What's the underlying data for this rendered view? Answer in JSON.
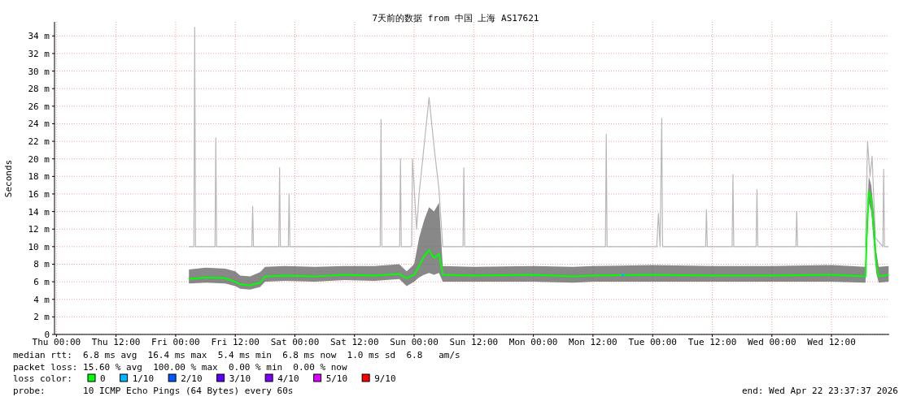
{
  "chart_data": {
    "type": "line",
    "title": "7天前的数据 from 中国 上海 AS17621",
    "ylabel": "Seconds",
    "xlim": [
      "2026-04-15T23:37",
      "2026-04-22T23:37"
    ],
    "xticks": [
      {
        "value": "2026-04-16T00:00",
        "label": "Thu 00:00"
      },
      {
        "value": "2026-04-16T12:00",
        "label": "Thu 12:00"
      },
      {
        "value": "2026-04-17T00:00",
        "label": "Fri 00:00"
      },
      {
        "value": "2026-04-17T12:00",
        "label": "Fri 12:00"
      },
      {
        "value": "2026-04-18T00:00",
        "label": "Sat 00:00"
      },
      {
        "value": "2026-04-18T12:00",
        "label": "Sat 12:00"
      },
      {
        "value": "2026-04-19T00:00",
        "label": "Sun 00:00"
      },
      {
        "value": "2026-04-19T12:00",
        "label": "Sun 12:00"
      },
      {
        "value": "2026-04-20T00:00",
        "label": "Mon 00:00"
      },
      {
        "value": "2026-04-20T12:00",
        "label": "Mon 12:00"
      },
      {
        "value": "2026-04-21T00:00",
        "label": "Tue 00:00"
      },
      {
        "value": "2026-04-21T12:00",
        "label": "Tue 12:00"
      },
      {
        "value": "2026-04-22T00:00",
        "label": "Wed 00:00"
      },
      {
        "value": "2026-04-22T12:00",
        "label": "Wed 12:00"
      }
    ],
    "ylim": [
      0,
      35.6
    ],
    "yticks": [
      0,
      {
        "value": 2,
        "label": "2 m"
      },
      {
        "value": 4,
        "label": "4 m"
      },
      {
        "value": 6,
        "label": "6 m"
      },
      {
        "value": 8,
        "label": "8 m"
      },
      {
        "value": 10,
        "label": "10 m"
      },
      {
        "value": 12,
        "label": "12 m"
      },
      {
        "value": 14,
        "label": "14 m"
      },
      {
        "value": 16,
        "label": "16 m"
      },
      {
        "value": 18,
        "label": "18 m"
      },
      {
        "value": 20,
        "label": "20 m"
      },
      {
        "value": 22,
        "label": "22 m"
      },
      {
        "value": 24,
        "label": "24 m"
      },
      {
        "value": 26,
        "label": "26 m"
      },
      {
        "value": 28,
        "label": "28 m"
      },
      {
        "value": 30,
        "label": "30 m"
      },
      {
        "value": 32,
        "label": "32 m"
      },
      {
        "value": 34,
        "label": "34 m"
      }
    ],
    "grid": true,
    "legend": "bottom",
    "legend_title": "loss color:",
    "annotations": [
      "median rtt:  6.8 ms avg  16.4 ms max  5.4 ms min  6.8 ms now  1.0 ms sd  6.8   am/s",
      "packet loss: 15.60 % avg  100.00 % max  0.00 % min  0.00 % now",
      "probe:       10 ICMP Echo Pings (64 Bytes) every 60s",
      "end: Wed Apr 22 23:37:37 2026"
    ],
    "series": [
      {
        "color": "#b8b8b8",
        "x": [
          "2026-04-17T02:40",
          "2026-04-17T03:40",
          "2026-04-17T03:50",
          "2026-04-17T04:00",
          "2026-04-17T07:55",
          "2026-04-17T08:05",
          "2026-04-17T08:15",
          "2026-04-17T15:20",
          "2026-04-17T15:30",
          "2026-04-17T15:40",
          "2026-04-17T20:45",
          "2026-04-17T20:55",
          "2026-04-17T21:05",
          "2026-04-17T22:40",
          "2026-04-17T22:50",
          "2026-04-17T23:00",
          "2026-04-18T17:10",
          "2026-04-18T17:20",
          "2026-04-18T17:30",
          "2026-04-18T21:05",
          "2026-04-18T21:15",
          "2026-04-18T21:25",
          "2026-04-18T23:30",
          "2026-04-18T23:40",
          "2026-04-19T00:30",
          "2026-04-19T01:00",
          "2026-04-19T03:00",
          "2026-04-19T04:05",
          "2026-04-19T05:00",
          "2026-04-19T05:45",
          "2026-04-19T09:50",
          "2026-04-19T10:00",
          "2026-04-19T10:10",
          "2026-04-20T14:30",
          "2026-04-20T14:40",
          "2026-04-20T14:50",
          "2026-04-21T00:50",
          "2026-04-21T01:10",
          "2026-04-21T01:30",
          "2026-04-21T01:50",
          "2026-04-21T02:00",
          "2026-04-21T10:40",
          "2026-04-21T10:50",
          "2026-04-21T11:00",
          "2026-04-21T16:00",
          "2026-04-21T16:10",
          "2026-04-21T16:20",
          "2026-04-21T20:50",
          "2026-04-21T21:00",
          "2026-04-21T21:10",
          "2026-04-22T04:50",
          "2026-04-22T05:00",
          "2026-04-22T05:10",
          "2026-04-22T18:50",
          "2026-04-22T19:15",
          "2026-04-22T19:45",
          "2026-04-22T20:10",
          "2026-04-22T20:50",
          "2026-04-22T22:20",
          "2026-04-22T22:30",
          "2026-04-22T22:40",
          "2026-04-22T23:30"
        ],
        "values": [
          10,
          10,
          35,
          10,
          10,
          22.4,
          10,
          10,
          14.6,
          10,
          10,
          19,
          10,
          10,
          16,
          10,
          10,
          24.5,
          10,
          10,
          20,
          10,
          10,
          20,
          12,
          16,
          27,
          21,
          16.5,
          10,
          10,
          19,
          10,
          10,
          22.8,
          10,
          10,
          13.8,
          10,
          24.6,
          10,
          10,
          14.2,
          10,
          10,
          18.2,
          10,
          10,
          16.5,
          10,
          10,
          14,
          10,
          10,
          22,
          18,
          20.3,
          11,
          10,
          18.8,
          10,
          10
        ]
      },
      {
        "name": "0",
        "color": "#00ff00",
        "x": [
          "2026-04-17T02:40",
          "2026-04-17T06:00",
          "2026-04-17T10:00",
          "2026-04-17T12:00",
          "2026-04-17T13:00",
          "2026-04-17T15:00",
          "2026-04-17T17:00",
          "2026-04-17T18:00",
          "2026-04-17T22:00",
          "2026-04-18T04:00",
          "2026-04-18T10:00",
          "2026-04-18T16:00",
          "2026-04-18T21:00",
          "2026-04-18T22:30",
          "2026-04-19T00:00",
          "2026-04-19T01:00",
          "2026-04-19T02:00",
          "2026-04-19T03:00",
          "2026-04-19T04:00",
          "2026-04-19T05:00",
          "2026-04-19T05:45",
          "2026-04-19T12:00",
          "2026-04-20T00:00",
          "2026-04-20T08:00",
          "2026-04-20T12:00",
          "2026-04-21T00:00",
          "2026-04-21T12:00",
          "2026-04-22T00:00",
          "2026-04-22T12:00",
          "2026-04-22T18:50",
          "2026-04-22T19:05",
          "2026-04-22T19:30",
          "2026-04-22T20:00",
          "2026-04-22T20:30",
          "2026-04-22T21:00",
          "2026-04-22T21:30",
          "2026-04-22T23:30"
        ],
        "values": [
          6.3,
          6.5,
          6.4,
          6.0,
          5.7,
          5.6,
          5.9,
          6.6,
          6.7,
          6.6,
          6.8,
          6.7,
          6.9,
          6.4,
          6.8,
          7.8,
          8.9,
          9.6,
          8.7,
          9.2,
          6.8,
          6.7,
          6.8,
          6.6,
          6.7,
          6.8,
          6.7,
          6.7,
          6.8,
          6.6,
          11,
          16.3,
          15.5,
          12,
          8,
          6.6,
          6.8
        ],
        "lower": [
          5.8,
          5.9,
          5.8,
          5.5,
          5.2,
          5.1,
          5.4,
          6.0,
          6.1,
          6.0,
          6.2,
          6.1,
          6.3,
          5.5,
          6.0,
          6.5,
          6.8,
          7.0,
          6.8,
          7.0,
          6.0,
          6.0,
          6.0,
          5.9,
          6.0,
          6.0,
          6.0,
          6.0,
          6.0,
          5.9,
          9.5,
          15,
          14,
          10.5,
          7,
          5.9,
          6.0
        ],
        "upper": [
          7.4,
          7.6,
          7.5,
          7.2,
          6.7,
          6.6,
          7.1,
          7.7,
          7.8,
          7.7,
          7.8,
          7.8,
          8.0,
          7.2,
          8.0,
          11,
          13,
          14.5,
          14,
          15,
          7.8,
          7.7,
          7.8,
          7.7,
          7.8,
          7.9,
          7.8,
          7.8,
          7.9,
          7.7,
          12.5,
          18,
          17,
          14,
          9.5,
          7.7,
          7.8
        ]
      },
      {
        "name": "1/10",
        "color": "#00b8ff",
        "type": "scatter",
        "x": [
          "2026-04-20T18:00"
        ],
        "values": [
          6.8
        ]
      },
      {
        "name": "2/10",
        "color": "#0059ff"
      },
      {
        "name": "3/10",
        "color": "#5e00ff"
      },
      {
        "name": "4/10",
        "color": "#7e00ff"
      },
      {
        "name": "5/10",
        "color": "#dd00ff"
      },
      {
        "name": "9/10",
        "color": "#ff0000"
      }
    ]
  }
}
